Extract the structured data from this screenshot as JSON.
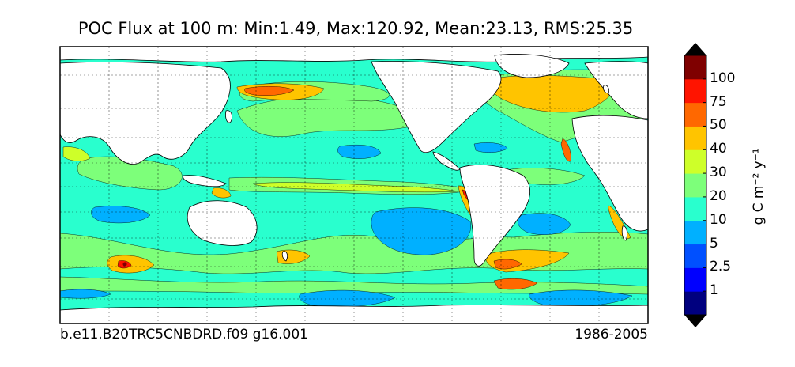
{
  "title": "POC Flux at 100 m: Min:1.49, Max:120.92, Mean:23.13, RMS:25.35",
  "footer": {
    "left": "b.e11.B20TRC5CNBDRD.f09 g16.001",
    "right": "1986-2005"
  },
  "colorbar": {
    "units": "g C m⁻² y⁻¹",
    "levels": [
      "1",
      "2.5",
      "5",
      "10",
      "20",
      "30",
      "40",
      "50",
      "75",
      "100"
    ],
    "colors": [
      "#00007f",
      "#0000ff",
      "#0050ff",
      "#00b0ff",
      "#29ffce",
      "#7dff7a",
      "#ceff29",
      "#ffc400",
      "#ff6800",
      "#ff1400",
      "#7f0000"
    ]
  },
  "map": {
    "field": "POC flux",
    "depth": "100 m",
    "land_color": "#ffffff",
    "dominant_colors": {
      "subtropical_gyres": "#29ffce",
      "oligotrophic_centers": "#00b0ff",
      "upwelling_and_shelves": "#ffc400",
      "equatorial_and_subpolar": "#7dff7a"
    }
  }
}
